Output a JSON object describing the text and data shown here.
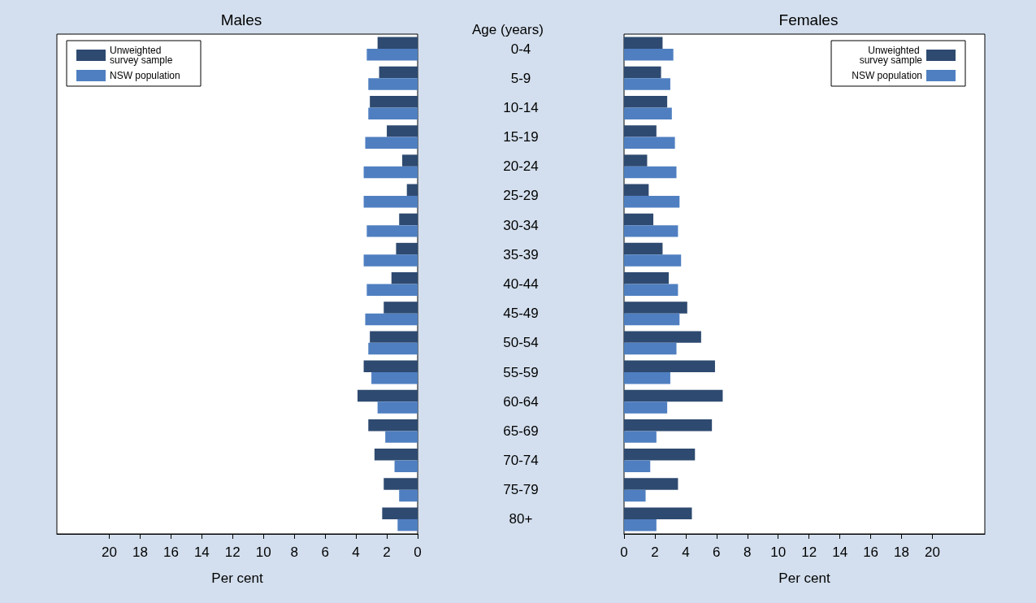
{
  "chart_data": [
    {
      "type": "bar",
      "orientation": "horizontal",
      "title": "Males",
      "xlabel": "Per cent",
      "ylabel": "Age (years)",
      "categories": [
        "0-4",
        "5-9",
        "10-14",
        "15-19",
        "20-24",
        "25-29",
        "30-34",
        "35-39",
        "40-44",
        "45-49",
        "50-54",
        "55-59",
        "60-64",
        "65-69",
        "70-74",
        "75-79",
        "80+"
      ],
      "series": [
        {
          "name": "Unweighted survey sample",
          "color": "#2e4a70",
          "values": [
            2.6,
            2.5,
            3.1,
            2.0,
            1.0,
            0.7,
            1.2,
            1.4,
            1.7,
            2.2,
            3.1,
            3.5,
            3.9,
            3.2,
            2.8,
            2.2,
            2.3
          ]
        },
        {
          "name": "NSW population",
          "color": "#4f7fc1",
          "values": [
            3.3,
            3.2,
            3.2,
            3.4,
            3.5,
            3.5,
            3.3,
            3.5,
            3.3,
            3.4,
            3.2,
            3.0,
            2.6,
            2.1,
            1.5,
            1.2,
            1.3
          ]
        }
      ],
      "xlim": [
        23.4,
        0
      ],
      "xticks": [
        20,
        18,
        16,
        14,
        12,
        10,
        8,
        6,
        4,
        2,
        0
      ],
      "grid": false,
      "legend": "top left"
    },
    {
      "type": "bar",
      "orientation": "horizontal",
      "title": "Females",
      "xlabel": "Per cent",
      "categories": [
        "0-4",
        "5-9",
        "10-14",
        "15-19",
        "20-24",
        "25-29",
        "30-34",
        "35-39",
        "40-44",
        "45-49",
        "50-54",
        "55-59",
        "60-64",
        "65-69",
        "70-74",
        "75-79",
        "80+"
      ],
      "series": [
        {
          "name": "Unweighted survey sample",
          "color": "#2e4a70",
          "values": [
            2.5,
            2.4,
            2.8,
            2.1,
            1.5,
            1.6,
            1.9,
            2.5,
            2.9,
            4.1,
            5.0,
            5.9,
            6.4,
            5.7,
            4.6,
            3.5,
            4.4
          ]
        },
        {
          "name": "NSW population",
          "color": "#4f7fc1",
          "values": [
            3.2,
            3.0,
            3.1,
            3.3,
            3.4,
            3.6,
            3.5,
            3.7,
            3.5,
            3.6,
            3.4,
            3.0,
            2.8,
            2.1,
            1.7,
            1.4,
            2.1
          ]
        }
      ],
      "xlim": [
        0,
        23.4
      ],
      "xticks": [
        0,
        2,
        4,
        6,
        8,
        10,
        12,
        14,
        16,
        18,
        20
      ],
      "grid": false,
      "legend": "top right",
      "tick_labels": "x"
    }
  ]
}
